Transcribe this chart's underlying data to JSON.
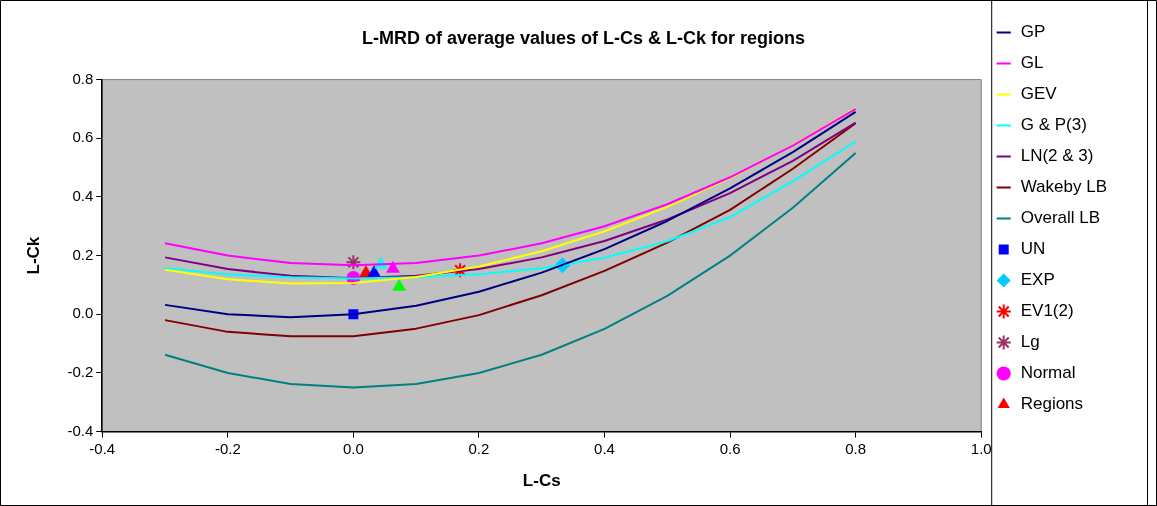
{
  "chart_data": {
    "type": "line",
    "title": "L-MRD of average values of L-Cs & L-Ck for regions",
    "xlabel": "L-Cs",
    "ylabel": "L-Ck",
    "xlim": [
      -0.4,
      1.0
    ],
    "xticks": [
      -0.4,
      -0.2,
      {
        "value": 0,
        "label": "0.0"
      },
      0.2,
      0.4,
      0.6,
      0.8,
      {
        "value": 1,
        "label": "1.0"
      }
    ],
    "ylim": [
      -0.4,
      0.8
    ],
    "yticks": [
      -0.4,
      -0.2,
      {
        "value": 0,
        "label": "0.0"
      },
      0.2,
      0.4,
      0.6,
      0.8
    ],
    "grid": false,
    "legend": "right",
    "series": [
      {
        "name": "GP",
        "marker": "none",
        "color": "#000080",
        "x": [
          -0.3,
          -0.2,
          -0.1,
          0,
          0.1,
          0.2,
          0.3,
          0.4,
          0.5,
          0.6,
          0.7,
          0.8
        ],
        "values": [
          0.032,
          0,
          -0.01,
          0,
          0.029,
          0.077,
          0.142,
          0.222,
          0.318,
          0.429,
          0.553,
          0.69
        ]
      },
      {
        "name": "GL",
        "marker": "none",
        "color": "#ff00ff",
        "x": [
          -0.3,
          -0.2,
          -0.1,
          0,
          0.1,
          0.2,
          0.3,
          0.4,
          0.5,
          0.6,
          0.7,
          0.8
        ],
        "values": [
          0.242,
          0.2,
          0.175,
          0.167,
          0.175,
          0.2,
          0.242,
          0.3,
          0.375,
          0.467,
          0.575,
          0.7
        ]
      },
      {
        "name": "GEV",
        "marker": "none",
        "color": "#ffff00",
        "x": [
          -0.3,
          -0.2,
          -0.1,
          0,
          0.1,
          0.2,
          0.3,
          0.4,
          0.5,
          0.6,
          0.7,
          0.8
        ],
        "values": [
          0.152,
          0.119,
          0.105,
          0.107,
          0.127,
          0.163,
          0.215,
          0.283,
          0.366,
          0.464,
          0.576,
          0.703
        ]
      },
      {
        "name": "G & P(3)",
        "marker": "none",
        "color": "#00ffff",
        "x": [
          -0.3,
          -0.2,
          -0.1,
          0,
          0.1,
          0.2,
          0.3,
          0.4,
          0.5,
          0.6,
          0.7,
          0.8
        ],
        "values": [
          0.157,
          0.136,
          0.126,
          0.122,
          0.126,
          0.136,
          0.157,
          0.193,
          0.249,
          0.331,
          0.454,
          0.589
        ]
      },
      {
        "name": "LN(2 & 3)",
        "marker": "none",
        "color": "#800080",
        "x": [
          -0.3,
          -0.2,
          -0.1,
          0,
          0.1,
          0.2,
          0.3,
          0.4,
          0.5,
          0.6,
          0.7,
          0.8
        ],
        "values": [
          0.194,
          0.154,
          0.131,
          0.123,
          0.131,
          0.154,
          0.194,
          0.25,
          0.323,
          0.413,
          0.523,
          0.653
        ]
      },
      {
        "name": "Wakeby LB",
        "marker": "none",
        "color": "#800000",
        "x": [
          -0.3,
          -0.2,
          -0.1,
          0,
          0.1,
          0.2,
          0.3,
          0.4,
          0.5,
          0.6,
          0.7,
          0.8
        ],
        "values": [
          -0.02,
          -0.06,
          -0.075,
          -0.075,
          -0.049,
          -0.003,
          0.065,
          0.148,
          0.244,
          0.356,
          0.496,
          0.651
        ]
      },
      {
        "name": "Overall LB",
        "marker": "none",
        "color": "#008080",
        "x": [
          -0.3,
          -0.2,
          -0.1,
          0,
          0.1,
          0.2,
          0.3,
          0.4,
          0.5,
          0.6,
          0.7,
          0.8
        ],
        "values": [
          -0.138,
          -0.2,
          -0.238,
          -0.25,
          -0.238,
          -0.2,
          -0.138,
          -0.05,
          0.063,
          0.2,
          0.363,
          0.55
        ]
      },
      {
        "name": "UN",
        "type": "scatter",
        "marker": "square",
        "color": "#0000ff",
        "x": [
          0
        ],
        "values": [
          0
        ]
      },
      {
        "name": "EXP",
        "type": "scatter",
        "marker": "diamond",
        "color": "#00ccff",
        "x": [
          0.333
        ],
        "values": [
          0.167
        ]
      },
      {
        "name": "EV1(2)",
        "type": "scatter",
        "marker": "cross",
        "color": "#ff0000",
        "x": [
          0.17
        ],
        "values": [
          0.15
        ]
      },
      {
        "name": "Lg",
        "type": "scatter",
        "marker": "cross",
        "color": "#993366",
        "x": [
          0
        ],
        "values": [
          0.177
        ]
      },
      {
        "name": "Normal",
        "type": "scatter",
        "marker": "circle",
        "color": "#ff00ff",
        "x": [
          0
        ],
        "values": [
          0.124
        ]
      },
      {
        "name": "Regions",
        "type": "scatter",
        "marker": "triangle",
        "colors": [
          "#ff0000",
          "#0000ff",
          "#00ffff",
          "#ff00ff",
          "#00ff00"
        ],
        "x": [
          0.02,
          0.033,
          0.044,
          0.063,
          0.073
        ],
        "values": [
          0.14,
          0.14,
          0.17,
          0.155,
          0.094
        ]
      }
    ]
  }
}
